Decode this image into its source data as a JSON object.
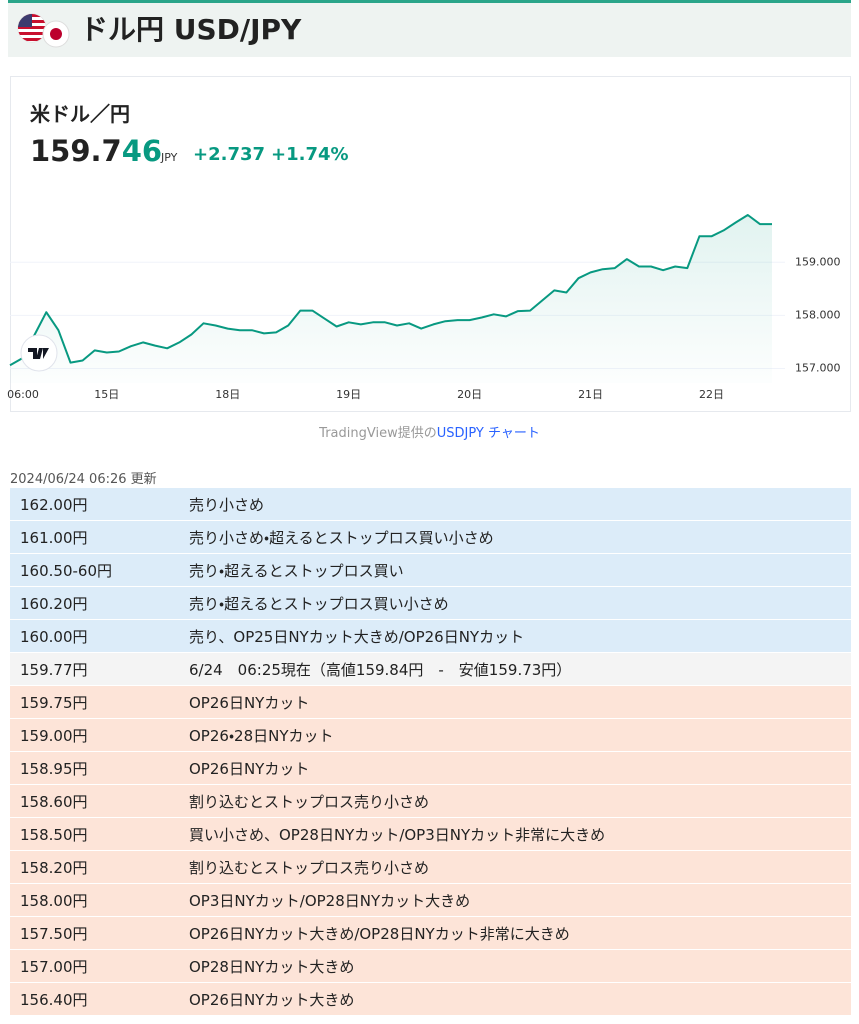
{
  "header": {
    "title": "ドル円 USD/JPY"
  },
  "quote": {
    "title": "米ドル／円",
    "price_major": "159.7",
    "price_minor": "46",
    "currency": "JPY",
    "change": "+2.737",
    "change_pct": "+1.74%"
  },
  "chart_data": {
    "type": "line",
    "color": "#089981",
    "grid": true,
    "categories": [
      null,
      "06:00",
      null,
      null,
      null,
      null,
      null,
      null,
      "15日",
      null,
      null,
      null,
      null,
      null,
      null,
      null,
      null,
      null,
      "18日",
      null,
      null,
      null,
      null,
      null,
      null,
      null,
      null,
      null,
      "19日",
      null,
      null,
      null,
      null,
      null,
      null,
      null,
      null,
      null,
      "20日",
      null,
      null,
      null,
      null,
      null,
      null,
      null,
      null,
      null,
      "21日",
      null,
      null,
      null,
      null,
      null,
      null,
      null,
      null,
      null,
      "22日",
      null,
      null,
      null,
      null,
      null
    ],
    "values": [
      157.06,
      157.19,
      157.62,
      158.06,
      157.72,
      157.11,
      157.15,
      157.34,
      157.3,
      157.32,
      157.42,
      157.49,
      157.43,
      157.38,
      157.49,
      157.64,
      157.85,
      157.81,
      157.75,
      157.72,
      157.72,
      157.66,
      157.68,
      157.81,
      158.09,
      158.09,
      157.94,
      157.79,
      157.87,
      157.83,
      157.87,
      157.87,
      157.81,
      157.85,
      157.75,
      157.83,
      157.89,
      157.91,
      157.91,
      157.96,
      158.02,
      157.98,
      158.08,
      158.09,
      158.28,
      158.47,
      158.43,
      158.7,
      158.81,
      158.87,
      158.89,
      159.06,
      158.92,
      158.92,
      158.85,
      158.92,
      158.89,
      159.49,
      159.49,
      159.6,
      159.75,
      159.89,
      159.72,
      159.72
    ],
    "ylim": [
      156.5,
      160.55
    ],
    "yticks": [
      {
        "value": 157,
        "label": "157.000"
      },
      {
        "value": 158,
        "label": "158.000"
      },
      {
        "value": 159,
        "label": "159.000"
      }
    ]
  },
  "caption": {
    "source": "TradingView提供の",
    "link": "USDJPY チャート"
  },
  "updated": "2024/06/24 06:26 更新",
  "table": {
    "rows": [
      [
        "162.00円",
        "売り小さめ"
      ],
      [
        "161.00円",
        "売り小さめ・超えるとストップロス買い小さめ"
      ],
      [
        "160.50-60円",
        "売り・超えるとストップロス買い"
      ],
      [
        "160.20円",
        "売り・超えるとストップロス買い小さめ"
      ],
      [
        "160.00円",
        "売り、OP25日NYカット大きめ/OP26日NYカット"
      ],
      [
        "159.77円",
        "6/24　06:25現在（高値159.84円　-　安値159.73円）"
      ],
      [
        "159.75円",
        "OP26日NYカット"
      ],
      [
        "159.00円",
        "OP26・28日NYカット"
      ],
      [
        "158.95円",
        "OP26日NYカット"
      ],
      [
        "158.60円",
        "割り込むとストップロス売り小さめ"
      ],
      [
        "158.50円",
        "買い小さめ、OP28日NYカット/OP3日NYカット非常に大きめ"
      ],
      [
        "158.20円",
        "割り込むとストップロス売り小さめ"
      ],
      [
        "158.00円",
        "OP3日NYカット/OP28日NYカット大きめ"
      ],
      [
        "157.50円",
        "OP26日NYカット大きめ/OP28日NYカット非常に大きめ"
      ],
      [
        "157.00円",
        "OP28日NYカット大きめ"
      ],
      [
        "156.40円",
        "OP26日NYカット大きめ"
      ]
    ]
  }
}
